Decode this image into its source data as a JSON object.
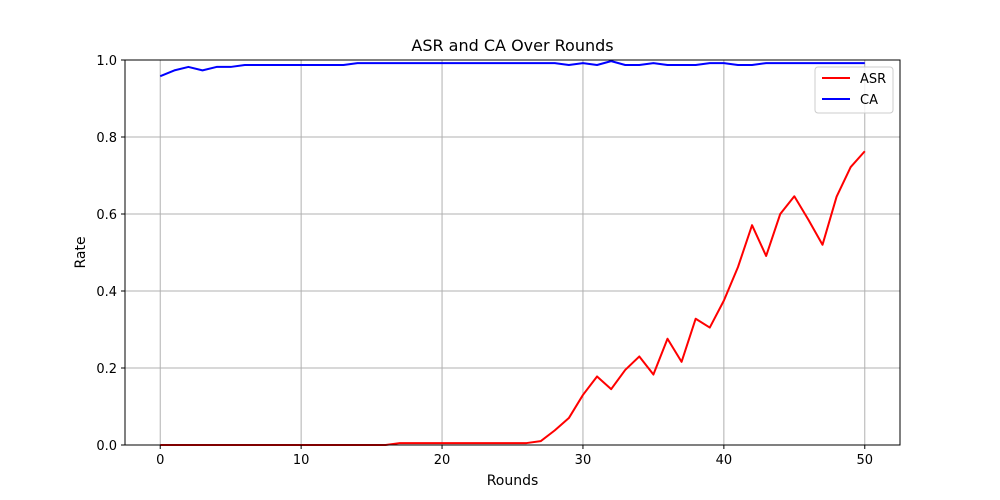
{
  "chart_data": {
    "type": "line",
    "title": "ASR and CA Over Rounds",
    "xlabel": "Rounds",
    "ylabel": "Rate",
    "xlim": [
      -2.5,
      52.5
    ],
    "ylim": [
      0.0,
      1.0
    ],
    "xticks": [
      0,
      10,
      20,
      30,
      40,
      50
    ],
    "yticks": [
      0.0,
      0.2,
      0.4,
      0.6,
      0.8,
      1.0
    ],
    "xtick_labels": [
      "0",
      "10",
      "20",
      "30",
      "40",
      "50"
    ],
    "ytick_labels": [
      "0.0",
      "0.2",
      "0.4",
      "0.6",
      "0.8",
      "1.0"
    ],
    "grid": true,
    "legend_position": "top-right",
    "x": [
      0,
      1,
      2,
      3,
      4,
      5,
      6,
      7,
      8,
      9,
      10,
      11,
      12,
      13,
      14,
      15,
      16,
      17,
      18,
      19,
      20,
      21,
      22,
      23,
      24,
      25,
      26,
      27,
      28,
      29,
      30,
      31,
      32,
      33,
      34,
      35,
      36,
      37,
      38,
      39,
      40,
      41,
      42,
      43,
      44,
      45,
      46,
      47,
      48,
      49,
      50
    ],
    "series": [
      {
        "name": "ASR",
        "color": "#ff0000",
        "values": [
          0,
          0,
          0,
          0,
          0,
          0,
          0,
          0,
          0,
          0,
          0,
          0,
          0,
          0,
          0,
          0,
          0,
          0.005,
          0.005,
          0.005,
          0.005,
          0.005,
          0.005,
          0.005,
          0.005,
          0.005,
          0.005,
          0.01,
          0.038,
          0.07,
          0.13,
          0.178,
          0.145,
          0.195,
          0.23,
          0.183,
          0.276,
          0.216,
          0.328,
          0.305,
          0.375,
          0.462,
          0.571,
          0.491,
          0.6,
          0.646,
          0.585,
          0.52,
          0.645,
          0.722,
          0.763
        ]
      },
      {
        "name": "CA",
        "color": "#0000ff",
        "values": [
          0.958,
          0.973,
          0.982,
          0.973,
          0.982,
          0.982,
          0.987,
          0.987,
          0.987,
          0.987,
          0.987,
          0.987,
          0.987,
          0.987,
          0.992,
          0.992,
          0.992,
          0.992,
          0.992,
          0.992,
          0.992,
          0.992,
          0.992,
          0.992,
          0.992,
          0.992,
          0.992,
          0.992,
          0.992,
          0.987,
          0.992,
          0.987,
          0.997,
          0.987,
          0.987,
          0.992,
          0.987,
          0.987,
          0.987,
          0.992,
          0.992,
          0.987,
          0.987,
          0.992,
          0.992,
          0.992,
          0.992,
          0.992,
          0.992,
          0.992,
          0.992
        ]
      }
    ]
  }
}
